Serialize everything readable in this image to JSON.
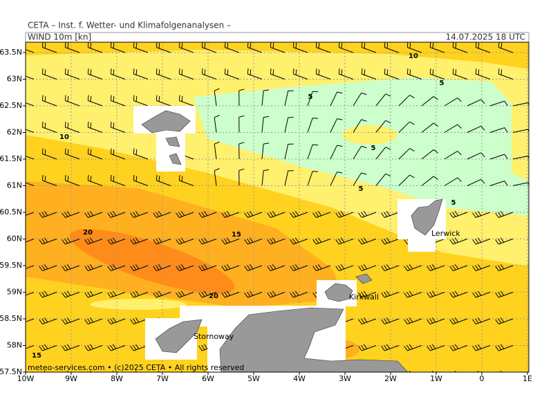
{
  "header": {
    "institute": "CETA – Inst. f. Wetter- und Klimafolgenanalysen –",
    "field": "WIND 10m [kn]",
    "valid_time": "14.07.2025 18 UTC"
  },
  "axes": {
    "latitudes": [
      "63.5N",
      "63N",
      "62.5N",
      "62N",
      "61.5N",
      "61N",
      "60.5N",
      "60N",
      "59.5N",
      "59N",
      "58.5N",
      "58N",
      "57.5N"
    ],
    "longitudes": [
      "10W",
      "9W",
      "8W",
      "7W",
      "6W",
      "5W",
      "4W",
      "3W",
      "2W",
      "1W",
      "0",
      "1E"
    ]
  },
  "contour_labels": [
    "10",
    "5",
    "5",
    "10",
    "5",
    "5",
    "5",
    "20",
    "15",
    "20",
    "15"
  ],
  "places": [
    "Lerwick",
    "Kirkwall",
    "Stornoway"
  ],
  "footer": "meteo-services.com • (c)2025 CETA • All rights reserved"
}
